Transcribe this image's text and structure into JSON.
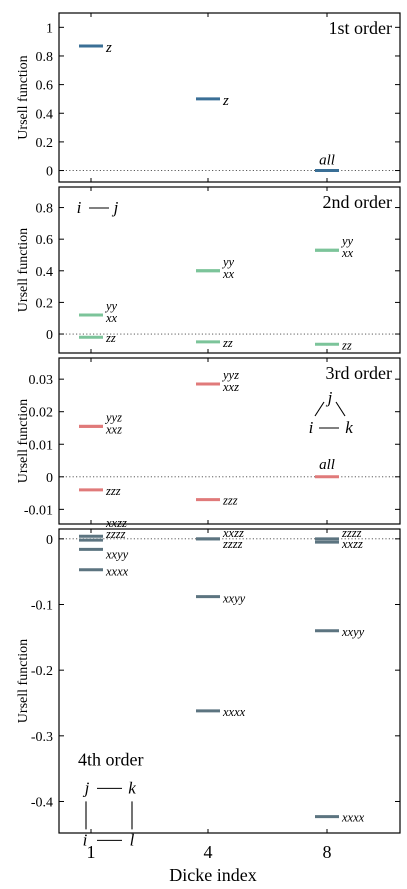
{
  "colors": {
    "first": "#3a6f96",
    "second": "#7cc49a",
    "third": "#e07a7a",
    "fourth": "#5c7480"
  },
  "x_categories": [
    "1",
    "4",
    "8"
  ],
  "xlabel": "Dicke index",
  "chart_data": [
    {
      "type": "scatter",
      "title": "1st order",
      "ylabel": "Ursell function",
      "ylim": [
        -0.08,
        1.1
      ],
      "yticks": [
        0,
        0.2,
        0.4,
        0.6,
        0.8,
        1
      ],
      "ytick_labels": [
        "0",
        "0.2",
        "0.4",
        "0.6",
        "0.8",
        "1"
      ],
      "diagram": null,
      "points": [
        {
          "x": "1",
          "y": 0.87,
          "label": "z"
        },
        {
          "x": "4",
          "y": 0.5,
          "label": "z"
        },
        {
          "x": "8",
          "y": 0.0,
          "label": "all"
        }
      ]
    },
    {
      "type": "scatter",
      "title": "2nd order",
      "ylabel": "Ursell function",
      "ylim": [
        -0.12,
        0.93
      ],
      "yticks": [
        0,
        0.2,
        0.4,
        0.6,
        0.8
      ],
      "ytick_labels": [
        "0",
        "0.2",
        "0.4",
        "0.6",
        "0.8"
      ],
      "diagram": {
        "type": "pair",
        "labels": [
          "i",
          "j"
        ]
      },
      "points": [
        {
          "x": "1",
          "y": 0.12,
          "label": "yy"
        },
        {
          "x": "1",
          "y": 0.12,
          "label": "xx"
        },
        {
          "x": "1",
          "y": -0.02,
          "label": "zz"
        },
        {
          "x": "4",
          "y": 0.4,
          "label": "yy"
        },
        {
          "x": "4",
          "y": 0.4,
          "label": "xx"
        },
        {
          "x": "4",
          "y": -0.05,
          "label": "zz"
        },
        {
          "x": "8",
          "y": 0.53,
          "label": "yy"
        },
        {
          "x": "8",
          "y": 0.53,
          "label": "xx"
        },
        {
          "x": "8",
          "y": -0.065,
          "label": "zz"
        }
      ]
    },
    {
      "type": "scatter",
      "title": "3rd order",
      "ylabel": "Ursell function",
      "ylim": [
        -0.0145,
        0.0365
      ],
      "yticks": [
        -0.01,
        0,
        0.01,
        0.02,
        0.03
      ],
      "ytick_labels": [
        "-0.01",
        "0",
        "0.01",
        "0.02",
        "0.03"
      ],
      "diagram": {
        "type": "triangle",
        "labels": [
          "j",
          "i",
          "k"
        ]
      },
      "points": [
        {
          "x": "1",
          "y": 0.0155,
          "label": "yyz"
        },
        {
          "x": "1",
          "y": 0.0155,
          "label": "xxz"
        },
        {
          "x": "1",
          "y": -0.004,
          "label": "zzz"
        },
        {
          "x": "4",
          "y": 0.0285,
          "label": "yyz"
        },
        {
          "x": "4",
          "y": 0.0285,
          "label": "xxz"
        },
        {
          "x": "4",
          "y": -0.007,
          "label": "zzz"
        },
        {
          "x": "8",
          "y": 0.0,
          "label": "all"
        }
      ]
    },
    {
      "type": "scatter",
      "title": "4th order",
      "ylabel": "Ursell function",
      "ylim": [
        -0.448,
        0.015
      ],
      "yticks": [
        -0.4,
        -0.3,
        -0.2,
        -0.1,
        0
      ],
      "ytick_labels": [
        "-0.4",
        "-0.3",
        "-0.2",
        "-0.1",
        "0"
      ],
      "diagram": {
        "type": "square",
        "labels": [
          "j",
          "k",
          "i",
          "l"
        ]
      },
      "points": [
        {
          "x": "1",
          "y": 0.004,
          "label": "xxzz"
        },
        {
          "x": "1",
          "y": -0.002,
          "label": "zzzz"
        },
        {
          "x": "1",
          "y": -0.016,
          "label": "xxyy"
        },
        {
          "x": "1",
          "y": -0.047,
          "label": "xxxx"
        },
        {
          "x": "4",
          "y": 0.0,
          "label": "xxzz"
        },
        {
          "x": "4",
          "y": 0.0,
          "label": "zzzz"
        },
        {
          "x": "4",
          "y": -0.088,
          "label": "xxyy"
        },
        {
          "x": "4",
          "y": -0.262,
          "label": "xxxx"
        },
        {
          "x": "8",
          "y": 0.0,
          "label": "zzzz"
        },
        {
          "x": "8",
          "y": -0.005,
          "label": "xxzz"
        },
        {
          "x": "8",
          "y": -0.14,
          "label": "xxyy"
        },
        {
          "x": "8",
          "y": -0.423,
          "label": "xxxx"
        }
      ]
    }
  ]
}
